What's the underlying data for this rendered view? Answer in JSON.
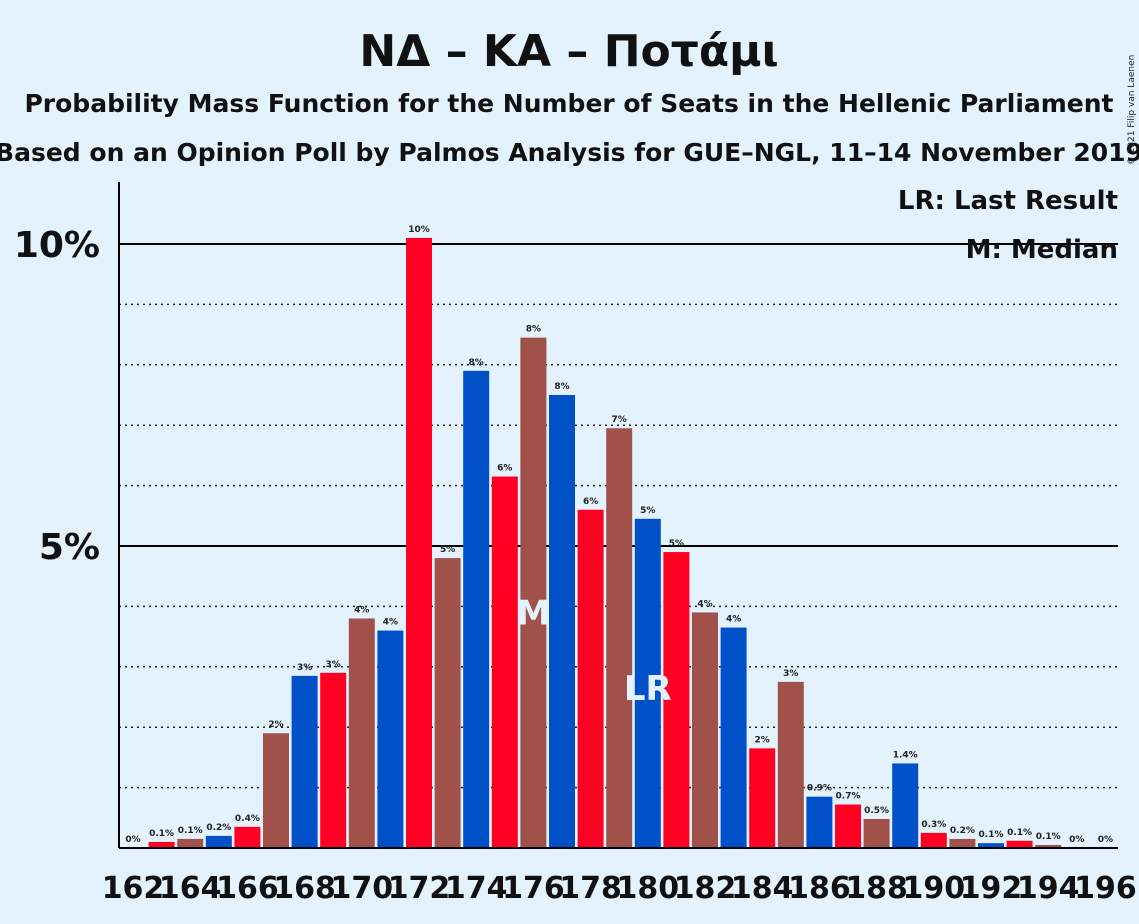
{
  "title": "ΝΔ – ΚΑ – Ποτάμι",
  "subtitle1": "Probability Mass Function for the Number of Seats in the Hellenic Parliament",
  "subtitle2": "Based on an Opinion Poll by Palmos Analysis for GUE–NGL, 11–14 November 2019",
  "copyright": "© 2021 Filip van Laenen",
  "legend": {
    "lr": "LR: Last Result",
    "m": "M: Median"
  },
  "colors": {
    "red": "#ff0022",
    "brown": "#a0524a",
    "blue": "#0050c8",
    "background": "#e3f2fd"
  },
  "chart_data": {
    "type": "bar",
    "x": [
      162,
      163,
      164,
      165,
      166,
      167,
      168,
      169,
      170,
      171,
      172,
      173,
      174,
      175,
      176,
      177,
      178,
      179,
      180,
      181,
      182,
      183,
      184,
      185,
      186,
      187,
      188,
      189,
      190,
      191,
      192,
      193,
      194,
      195,
      196
    ],
    "values": [
      0,
      0.1,
      0.15,
      0.2,
      0.35,
      1.9,
      2.85,
      2.9,
      3.8,
      3.6,
      10.1,
      4.8,
      7.9,
      6.15,
      8.45,
      7.5,
      5.6,
      6.95,
      5.45,
      4.9,
      3.9,
      3.65,
      1.65,
      2.75,
      0.85,
      0.72,
      0.48,
      1.4,
      0.25,
      0.15,
      0.08,
      0.12,
      0.05,
      0,
      0
    ],
    "labels": [
      "0%",
      "0.1%",
      "0.1%",
      "0.2%",
      "0.4%",
      "2%",
      "3%",
      "3%",
      "4%",
      "4%",
      "10%",
      "5%",
      "8%",
      "6%",
      "8%",
      "8%",
      "6%",
      "7%",
      "5%",
      "5%",
      "4%",
      "4%",
      "2%",
      "3%",
      "0.9%",
      "0.7%",
      "0.5%",
      "1.4%",
      "0.3%",
      "0.2%",
      "0.1%",
      "0.1%",
      "0.1%",
      "0%",
      "0%"
    ],
    "bar_colors": [
      "red",
      "red",
      "brown",
      "blue",
      "red",
      "brown",
      "blue",
      "red",
      "brown",
      "blue",
      "red",
      "brown",
      "blue",
      "red",
      "brown",
      "blue",
      "red",
      "brown",
      "blue",
      "red",
      "brown",
      "blue",
      "red",
      "brown",
      "blue",
      "red",
      "brown",
      "blue",
      "red",
      "brown",
      "blue",
      "red",
      "brown",
      "blue",
      "red"
    ],
    "x_ticks": [
      162,
      164,
      166,
      168,
      170,
      172,
      174,
      176,
      178,
      180,
      182,
      184,
      186,
      188,
      190,
      192,
      194,
      196
    ],
    "y_ticks": [
      {
        "value": 5,
        "label": "5%"
      },
      {
        "value": 10,
        "label": "10%"
      }
    ],
    "ylim": [
      0,
      11
    ],
    "median": 176,
    "last_result": 180,
    "median_label": "M",
    "last_result_label": "LR",
    "grid": "dotted every 1%"
  }
}
